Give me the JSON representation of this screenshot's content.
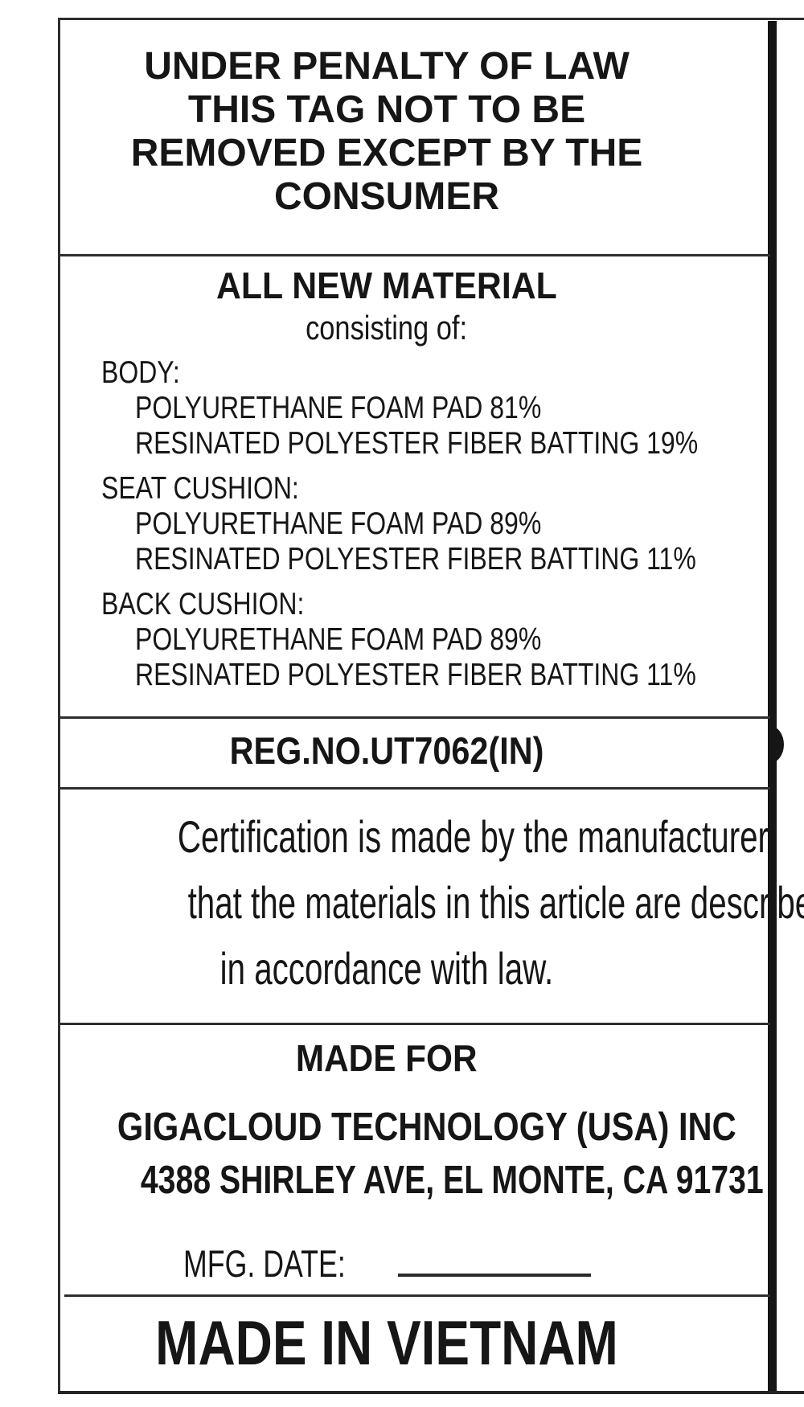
{
  "label": {
    "warning": {
      "lines": [
        "UNDER PENALTY OF LAW",
        "THIS TAG NOT TO BE",
        "REMOVED EXCEPT BY THE",
        "CONSUMER"
      ]
    },
    "materials": {
      "title": "ALL NEW MATERIAL",
      "subtitle": "consisting of:",
      "groups": [
        {
          "label": "BODY:",
          "items": [
            "POLYURETHANE FOAM PAD 81%",
            "RESINATED POLYESTER FIBER BATTING 19%"
          ]
        },
        {
          "label": "SEAT CUSHION:",
          "items": [
            "POLYURETHANE FOAM PAD 89%",
            "RESINATED POLYESTER FIBER BATTING 11%"
          ]
        },
        {
          "label": "BACK CUSHION:",
          "items": [
            "POLYURETHANE FOAM PAD 89%",
            "RESINATED POLYESTER FIBER BATTING 11%"
          ]
        }
      ]
    },
    "reg_no": "REG.NO.UT7062(IN)",
    "certification": {
      "lines": [
        "Certification is made by the manufacturer",
        "that the materials in this article are described",
        "in accordance with law."
      ]
    },
    "made_for": {
      "heading": "MADE FOR",
      "company": "GIGACLOUD TECHNOLOGY (USA) INC",
      "address": "4388 SHIRLEY AVE, EL MONTE, CA 91731",
      "mfg_date_label": "MFG. DATE:",
      "mfg_date_value": ""
    },
    "origin": "MADE IN VIETNAM",
    "colors": {
      "ink": "#161616",
      "line": "#2e2e2e",
      "background": "#ffffff"
    }
  }
}
